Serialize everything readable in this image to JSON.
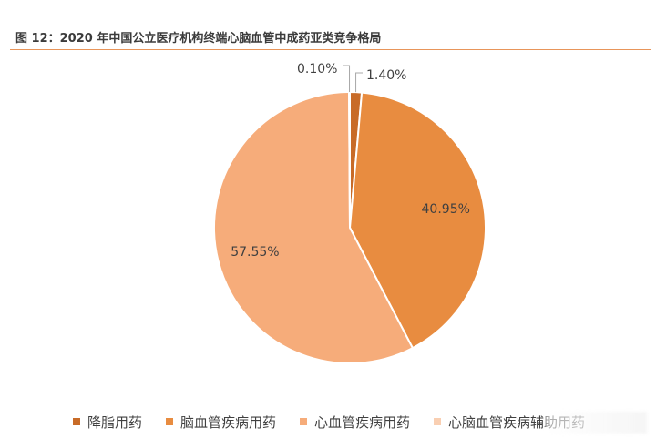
{
  "chart_data": {
    "type": "pie",
    "title": "图 12：2020 年中国公立医疗机构终端心脑血管中成药亚类竞争格局",
    "slices": [
      {
        "label": "降脂用药",
        "value": 1.4,
        "display": "1.40%",
        "color": "#c86b28"
      },
      {
        "label": "脑血管疾病用药",
        "value": 40.95,
        "display": "40.95%",
        "color": "#e88c40"
      },
      {
        "label": "心血管疾病用药",
        "value": 57.55,
        "display": "57.55%",
        "color": "#f6ac7a"
      },
      {
        "label": "心脑血管疾病辅助用药",
        "value": 0.1,
        "display": "0.10%",
        "color": "#f9cfb2"
      }
    ],
    "legend_position": "bottom"
  }
}
